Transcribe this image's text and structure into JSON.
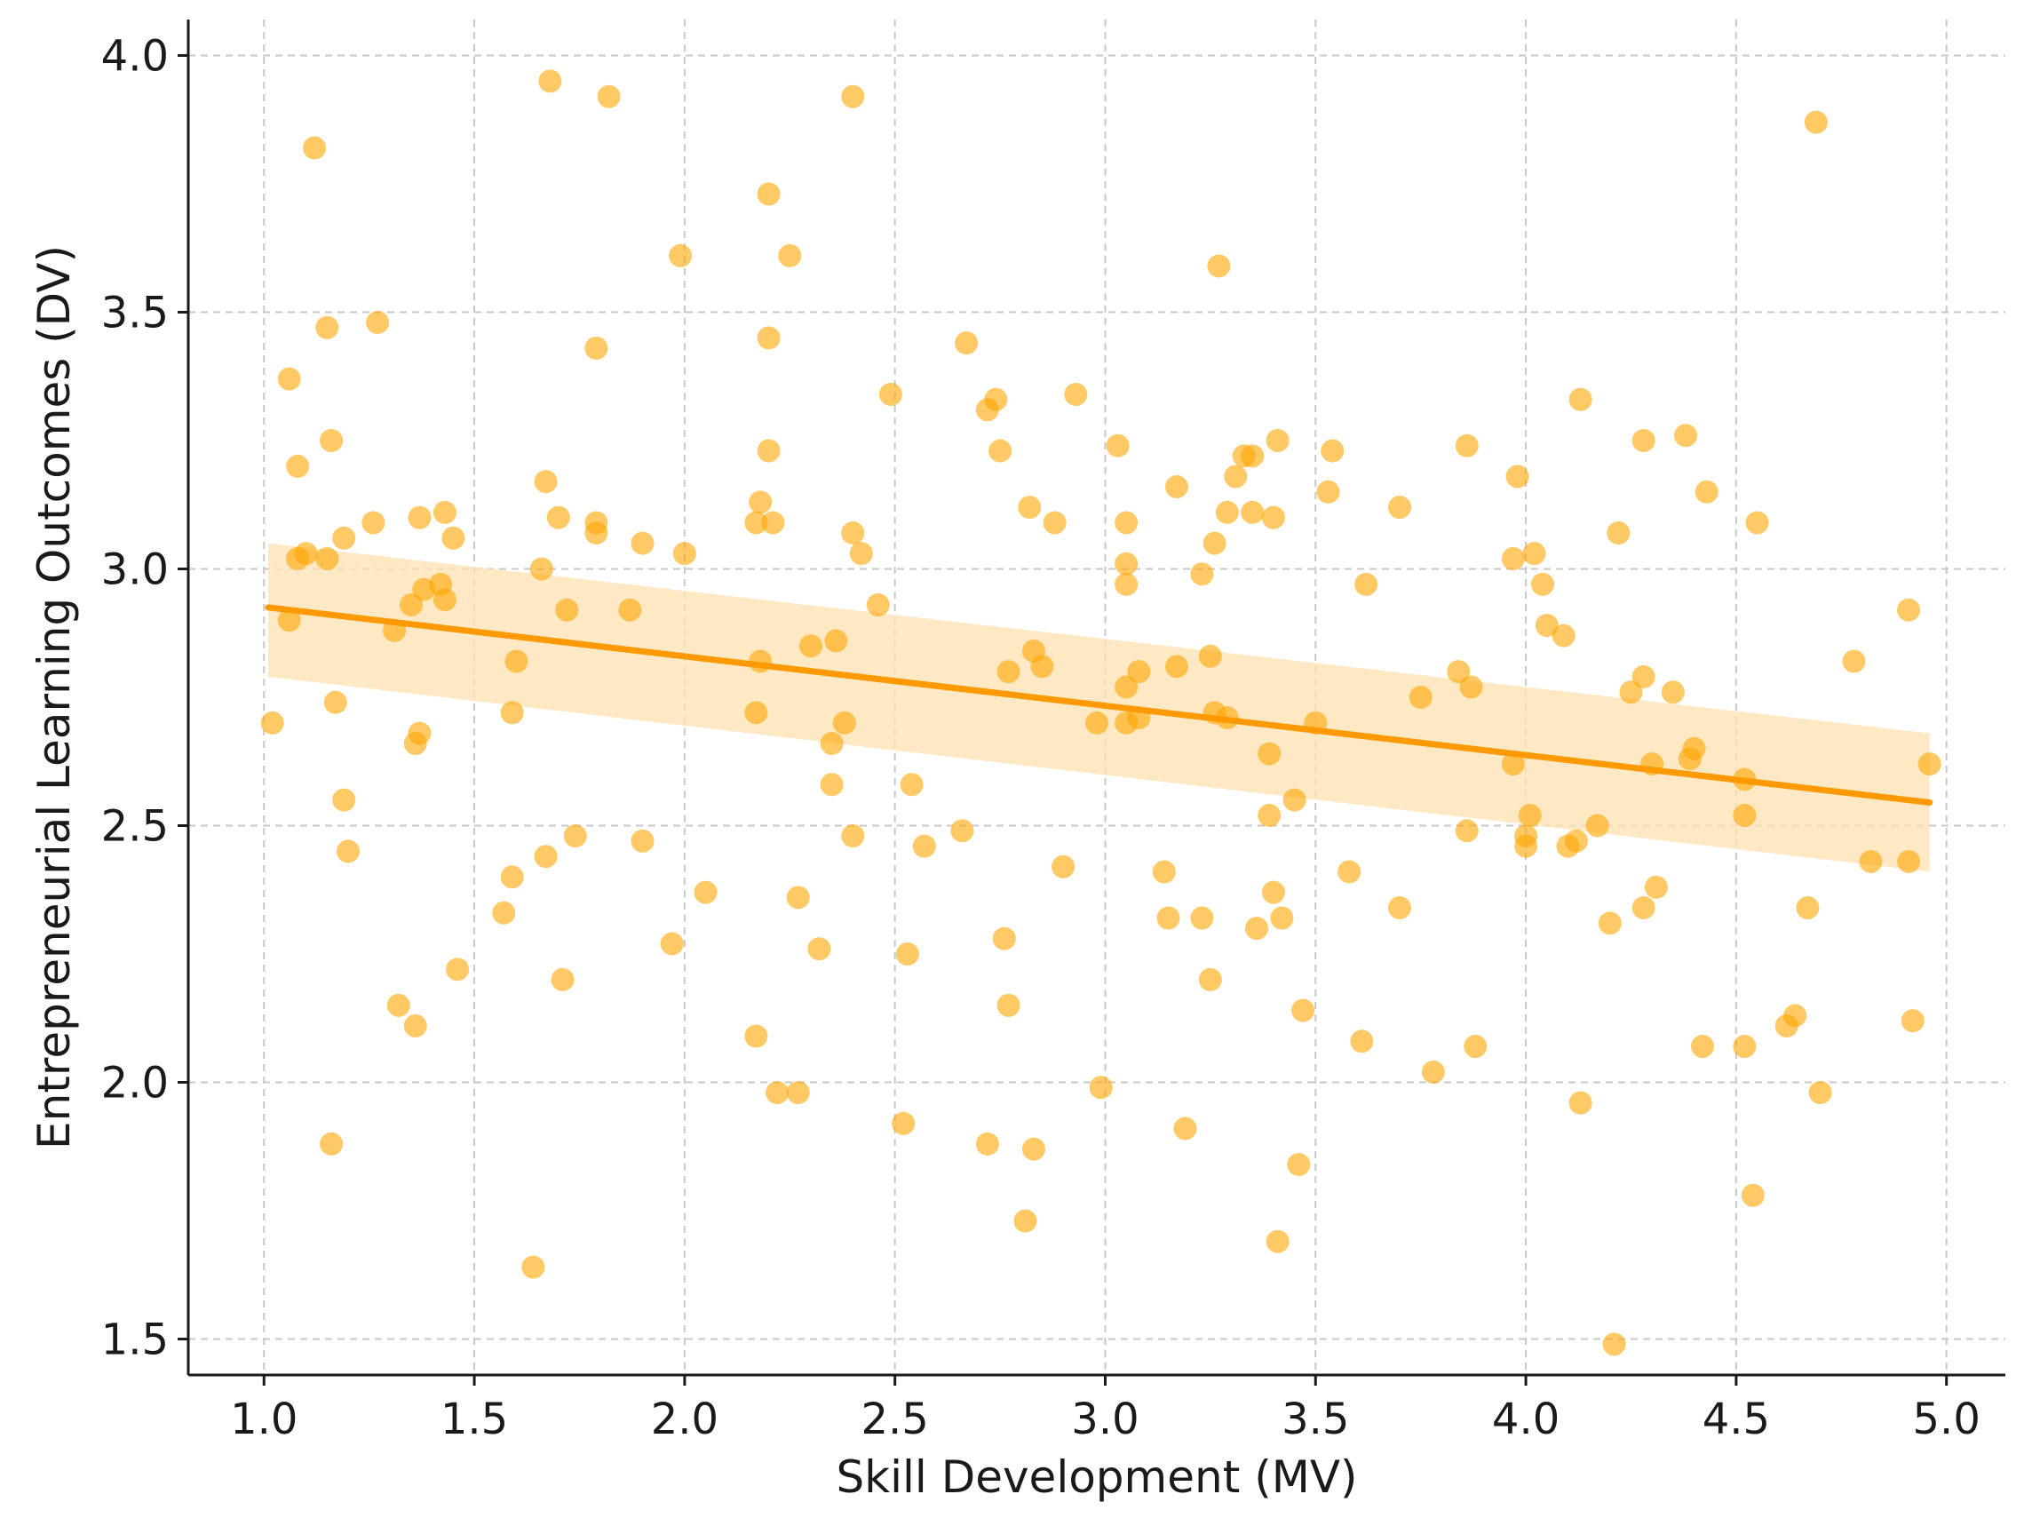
{
  "chart_data": {
    "type": "scatter",
    "title": "",
    "xlabel": "Skill Development (MV)",
    "ylabel": "Entrepreneurial Learning Outcomes (DV)",
    "xlim": [
      0.82,
      5.14
    ],
    "ylim": [
      1.43,
      4.07
    ],
    "xticks": [
      1.0,
      1.5,
      2.0,
      2.5,
      3.0,
      3.5,
      4.0,
      4.5,
      5.0
    ],
    "yticks": [
      1.5,
      2.0,
      2.5,
      3.0,
      3.5,
      4.0
    ],
    "xtick_labels": [
      "1.0",
      "1.5",
      "2.0",
      "2.5",
      "3.0",
      "3.5",
      "4.0",
      "4.5",
      "5.0"
    ],
    "ytick_labels": [
      "1.5",
      "2.0",
      "2.5",
      "3.0",
      "3.5",
      "4.0"
    ],
    "grid": true,
    "colors": {
      "points": "#FFA500",
      "line": "#FF9900",
      "band": "#FFE2B0"
    },
    "regression": {
      "x": [
        1.01,
        4.96
      ],
      "y": [
        2.925,
        2.545
      ],
      "ci_upper": [
        3.05,
        2.68
      ],
      "ci_lower": [
        2.79,
        2.41
      ]
    },
    "points": [
      [
        1.02,
        2.7
      ],
      [
        1.06,
        3.37
      ],
      [
        1.06,
        2.9
      ],
      [
        1.08,
        3.02
      ],
      [
        1.08,
        3.2
      ],
      [
        1.1,
        3.03
      ],
      [
        1.12,
        3.82
      ],
      [
        1.15,
        3.47
      ],
      [
        1.15,
        3.02
      ],
      [
        1.16,
        3.25
      ],
      [
        1.16,
        1.88
      ],
      [
        1.17,
        2.74
      ],
      [
        1.19,
        2.55
      ],
      [
        1.19,
        3.06
      ],
      [
        1.2,
        2.45
      ],
      [
        1.26,
        3.09
      ],
      [
        1.27,
        3.48
      ],
      [
        1.31,
        2.88
      ],
      [
        1.32,
        2.15
      ],
      [
        1.35,
        2.93
      ],
      [
        1.36,
        2.66
      ],
      [
        1.36,
        2.11
      ],
      [
        1.37,
        2.68
      ],
      [
        1.37,
        3.1
      ],
      [
        1.38,
        2.96
      ],
      [
        1.42,
        2.97
      ],
      [
        1.43,
        2.94
      ],
      [
        1.43,
        3.11
      ],
      [
        1.45,
        3.06
      ],
      [
        1.46,
        2.22
      ],
      [
        1.57,
        2.33
      ],
      [
        1.59,
        2.4
      ],
      [
        1.59,
        2.72
      ],
      [
        1.6,
        2.82
      ],
      [
        1.64,
        1.64
      ],
      [
        1.66,
        3.0
      ],
      [
        1.67,
        2.44
      ],
      [
        1.67,
        3.17
      ],
      [
        1.68,
        3.95
      ],
      [
        1.7,
        3.1
      ],
      [
        1.71,
        2.2
      ],
      [
        1.72,
        2.92
      ],
      [
        1.74,
        2.48
      ],
      [
        1.79,
        3.43
      ],
      [
        1.79,
        3.09
      ],
      [
        1.79,
        3.07
      ],
      [
        1.82,
        3.92
      ],
      [
        1.87,
        2.92
      ],
      [
        1.9,
        2.47
      ],
      [
        1.9,
        3.05
      ],
      [
        1.97,
        2.27
      ],
      [
        1.99,
        3.61
      ],
      [
        2.0,
        3.03
      ],
      [
        2.05,
        2.37
      ],
      [
        2.17,
        3.09
      ],
      [
        2.17,
        2.72
      ],
      [
        2.17,
        2.09
      ],
      [
        2.18,
        3.13
      ],
      [
        2.18,
        2.82
      ],
      [
        2.2,
        3.23
      ],
      [
        2.2,
        3.73
      ],
      [
        2.2,
        3.45
      ],
      [
        2.21,
        3.09
      ],
      [
        2.22,
        1.98
      ],
      [
        2.25,
        3.61
      ],
      [
        2.27,
        2.36
      ],
      [
        2.27,
        1.98
      ],
      [
        2.3,
        2.85
      ],
      [
        2.32,
        2.26
      ],
      [
        2.35,
        2.66
      ],
      [
        2.35,
        2.58
      ],
      [
        2.36,
        2.86
      ],
      [
        2.38,
        2.7
      ],
      [
        2.4,
        3.92
      ],
      [
        2.4,
        3.07
      ],
      [
        2.4,
        2.48
      ],
      [
        2.42,
        3.03
      ],
      [
        2.46,
        2.93
      ],
      [
        2.49,
        3.34
      ],
      [
        2.52,
        1.92
      ],
      [
        2.53,
        2.25
      ],
      [
        2.54,
        2.58
      ],
      [
        2.57,
        2.46
      ],
      [
        2.66,
        2.49
      ],
      [
        2.67,
        3.44
      ],
      [
        2.72,
        3.31
      ],
      [
        2.72,
        1.88
      ],
      [
        2.74,
        3.33
      ],
      [
        2.75,
        3.23
      ],
      [
        2.76,
        2.28
      ],
      [
        2.77,
        2.15
      ],
      [
        2.77,
        2.8
      ],
      [
        2.81,
        1.73
      ],
      [
        2.82,
        3.12
      ],
      [
        2.83,
        2.84
      ],
      [
        2.83,
        1.87
      ],
      [
        2.85,
        2.81
      ],
      [
        2.88,
        3.09
      ],
      [
        2.9,
        2.42
      ],
      [
        2.93,
        3.34
      ],
      [
        2.98,
        2.7
      ],
      [
        2.99,
        1.99
      ],
      [
        3.03,
        3.24
      ],
      [
        3.05,
        3.09
      ],
      [
        3.05,
        3.01
      ],
      [
        3.05,
        2.97
      ],
      [
        3.05,
        2.77
      ],
      [
        3.05,
        2.7
      ],
      [
        3.08,
        2.8
      ],
      [
        3.08,
        2.71
      ],
      [
        3.14,
        2.41
      ],
      [
        3.15,
        2.32
      ],
      [
        3.17,
        3.16
      ],
      [
        3.17,
        2.81
      ],
      [
        3.19,
        1.91
      ],
      [
        3.23,
        2.99
      ],
      [
        3.23,
        2.32
      ],
      [
        3.25,
        2.2
      ],
      [
        3.25,
        2.83
      ],
      [
        3.26,
        3.05
      ],
      [
        3.26,
        2.72
      ],
      [
        3.27,
        3.59
      ],
      [
        3.29,
        3.11
      ],
      [
        3.29,
        2.71
      ],
      [
        3.31,
        3.18
      ],
      [
        3.33,
        3.22
      ],
      [
        3.35,
        3.11
      ],
      [
        3.35,
        3.22
      ],
      [
        3.36,
        2.3
      ],
      [
        3.39,
        2.64
      ],
      [
        3.39,
        2.52
      ],
      [
        3.4,
        3.1
      ],
      [
        3.4,
        2.37
      ],
      [
        3.41,
        1.69
      ],
      [
        3.41,
        3.25
      ],
      [
        3.42,
        2.32
      ],
      [
        3.45,
        2.55
      ],
      [
        3.46,
        1.84
      ],
      [
        3.47,
        2.14
      ],
      [
        3.5,
        2.7
      ],
      [
        3.53,
        3.15
      ],
      [
        3.54,
        3.23
      ],
      [
        3.58,
        2.41
      ],
      [
        3.61,
        2.08
      ],
      [
        3.62,
        2.97
      ],
      [
        3.7,
        3.12
      ],
      [
        3.7,
        2.34
      ],
      [
        3.75,
        2.75
      ],
      [
        3.78,
        2.02
      ],
      [
        3.84,
        2.8
      ],
      [
        3.86,
        3.24
      ],
      [
        3.86,
        2.49
      ],
      [
        3.87,
        2.77
      ],
      [
        3.88,
        2.07
      ],
      [
        3.97,
        3.02
      ],
      [
        3.97,
        2.62
      ],
      [
        3.98,
        3.18
      ],
      [
        4.0,
        2.46
      ],
      [
        4.0,
        2.48
      ],
      [
        4.01,
        2.52
      ],
      [
        4.02,
        3.03
      ],
      [
        4.04,
        2.97
      ],
      [
        4.05,
        2.89
      ],
      [
        4.09,
        2.87
      ],
      [
        4.1,
        2.46
      ],
      [
        4.12,
        2.47
      ],
      [
        4.13,
        3.33
      ],
      [
        4.13,
        1.96
      ],
      [
        4.17,
        2.5
      ],
      [
        4.2,
        2.31
      ],
      [
        4.21,
        1.49
      ],
      [
        4.22,
        3.07
      ],
      [
        4.25,
        2.76
      ],
      [
        4.28,
        3.25
      ],
      [
        4.28,
        2.79
      ],
      [
        4.28,
        2.34
      ],
      [
        4.3,
        2.62
      ],
      [
        4.31,
        2.38
      ],
      [
        4.35,
        2.76
      ],
      [
        4.38,
        3.26
      ],
      [
        4.39,
        2.63
      ],
      [
        4.4,
        2.65
      ],
      [
        4.42,
        2.07
      ],
      [
        4.43,
        3.15
      ],
      [
        4.52,
        2.59
      ],
      [
        4.52,
        2.52
      ],
      [
        4.52,
        2.07
      ],
      [
        4.54,
        1.78
      ],
      [
        4.55,
        3.09
      ],
      [
        4.62,
        2.11
      ],
      [
        4.64,
        2.13
      ],
      [
        4.67,
        2.34
      ],
      [
        4.69,
        3.87
      ],
      [
        4.7,
        1.98
      ],
      [
        4.78,
        2.82
      ],
      [
        4.82,
        2.43
      ],
      [
        4.91,
        2.92
      ],
      [
        4.91,
        2.43
      ],
      [
        4.92,
        2.12
      ],
      [
        4.96,
        2.62
      ]
    ]
  }
}
